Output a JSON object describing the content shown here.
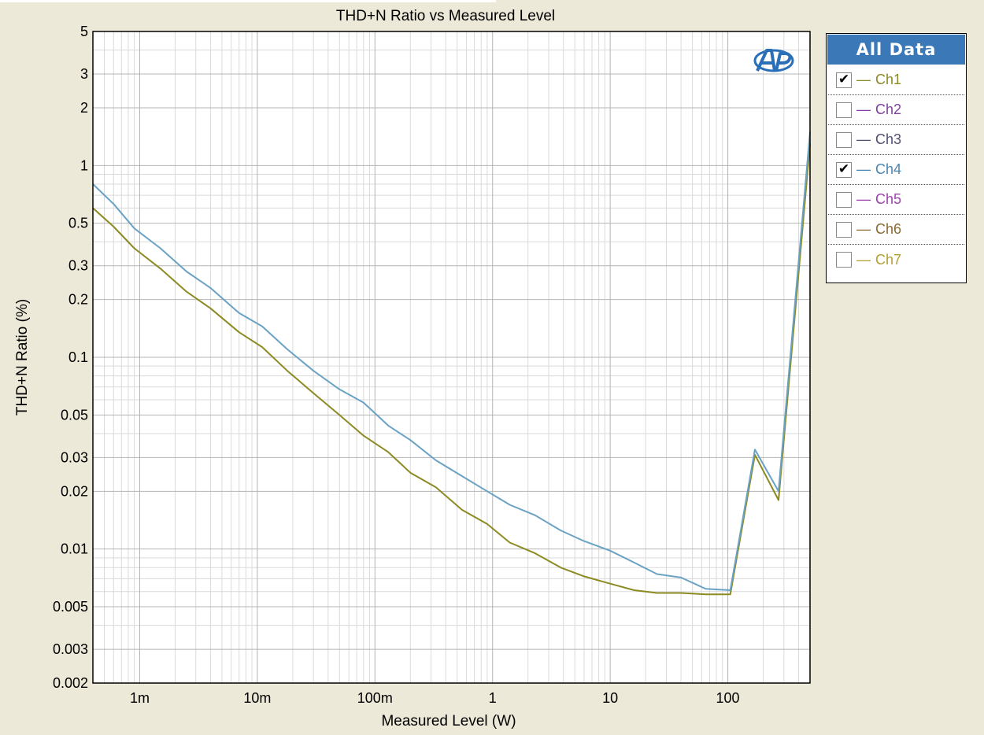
{
  "chart_data": {
    "type": "line",
    "title": "THD+N Ratio vs Measured Level",
    "xlabel": "Measured Level (W)",
    "ylabel": "THD+N Ratio (%)",
    "x_scale": "log",
    "y_scale": "log",
    "xlim": [
      0.0004,
      500
    ],
    "ylim": [
      0.002,
      5
    ],
    "x_ticks": [
      {
        "value": 0.001,
        "label": "1m"
      },
      {
        "value": 0.01,
        "label": "10m"
      },
      {
        "value": 0.1,
        "label": "100m"
      },
      {
        "value": 1,
        "label": "1"
      },
      {
        "value": 10,
        "label": "10"
      },
      {
        "value": 100,
        "label": "100"
      }
    ],
    "y_ticks": [
      {
        "value": 5,
        "label": "5"
      },
      {
        "value": 3,
        "label": "3"
      },
      {
        "value": 2,
        "label": "2"
      },
      {
        "value": 1,
        "label": "1"
      },
      {
        "value": 0.5,
        "label": "0.5"
      },
      {
        "value": 0.3,
        "label": "0.3"
      },
      {
        "value": 0.2,
        "label": "0.2"
      },
      {
        "value": 0.1,
        "label": "0.1"
      },
      {
        "value": 0.05,
        "label": "0.05"
      },
      {
        "value": 0.03,
        "label": "0.03"
      },
      {
        "value": 0.02,
        "label": "0.02"
      },
      {
        "value": 0.01,
        "label": "0.01"
      },
      {
        "value": 0.005,
        "label": "0.005"
      },
      {
        "value": 0.003,
        "label": "0.003"
      },
      {
        "value": 0.002,
        "label": "0.002"
      }
    ],
    "grid": true,
    "legend_position": "right",
    "series": [
      {
        "name": "Ch1",
        "color": "#8c8a22",
        "x": [
          0.0004,
          0.0006,
          0.0009,
          0.0015,
          0.0025,
          0.004,
          0.007,
          0.011,
          0.018,
          0.03,
          0.05,
          0.08,
          0.13,
          0.2,
          0.33,
          0.55,
          0.9,
          1.4,
          2.3,
          3.8,
          6,
          10,
          16,
          25,
          40,
          65,
          105,
          170,
          270,
          500
        ],
        "y": [
          0.6,
          0.48,
          0.37,
          0.29,
          0.22,
          0.18,
          0.135,
          0.113,
          0.085,
          0.065,
          0.05,
          0.039,
          0.032,
          0.025,
          0.021,
          0.016,
          0.0135,
          0.0108,
          0.0095,
          0.008,
          0.0072,
          0.0066,
          0.0061,
          0.0059,
          0.0059,
          0.0058,
          0.0058,
          0.031,
          0.018,
          1.3
        ]
      },
      {
        "name": "Ch4",
        "color": "#6aa2c4",
        "x": [
          0.0004,
          0.0006,
          0.0009,
          0.0015,
          0.0025,
          0.004,
          0.007,
          0.011,
          0.018,
          0.03,
          0.05,
          0.08,
          0.13,
          0.2,
          0.33,
          0.55,
          0.9,
          1.4,
          2.3,
          3.8,
          6,
          10,
          16,
          25,
          40,
          65,
          105,
          170,
          270,
          500
        ],
        "y": [
          0.8,
          0.63,
          0.47,
          0.37,
          0.28,
          0.23,
          0.17,
          0.145,
          0.11,
          0.085,
          0.068,
          0.058,
          0.044,
          0.037,
          0.029,
          0.024,
          0.02,
          0.017,
          0.015,
          0.0125,
          0.011,
          0.0098,
          0.0085,
          0.0074,
          0.0071,
          0.0062,
          0.0061,
          0.033,
          0.02,
          1.5
        ]
      }
    ]
  },
  "legend": {
    "header": "All Data",
    "items": [
      {
        "label": "Ch1",
        "checked": true,
        "mark": "✔",
        "color": "#8c8a22",
        "dash": "—"
      },
      {
        "label": "Ch2",
        "checked": false,
        "mark": "",
        "color": "#8040a0",
        "dash": "—"
      },
      {
        "label": "Ch3",
        "checked": false,
        "mark": "",
        "color": "#505070",
        "dash": "—"
      },
      {
        "label": "Ch4",
        "checked": true,
        "mark": "✔",
        "color": "#4a86b0",
        "dash": "—"
      },
      {
        "label": "Ch5",
        "checked": false,
        "mark": "",
        "color": "#a040b0",
        "dash": "—"
      },
      {
        "label": "Ch6",
        "checked": false,
        "mark": "",
        "color": "#8a6a30",
        "dash": "—"
      },
      {
        "label": "Ch7",
        "checked": false,
        "mark": "",
        "color": "#b0a030",
        "dash": "—"
      }
    ]
  },
  "logo": {
    "icon": "ap-logo-icon",
    "color": "#2a6fb8"
  }
}
